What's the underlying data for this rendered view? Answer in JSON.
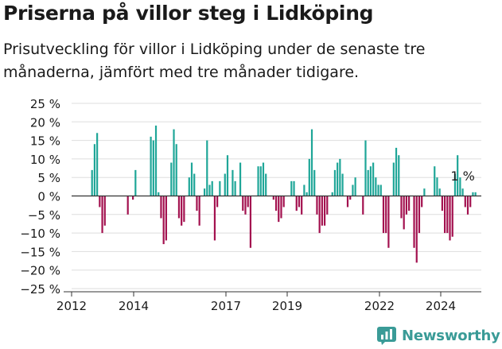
{
  "title": "Priserna på villor steg i Lidköping",
  "subtitle": "Prisutveckling för villor i Lidköping under de senaste tre månaderna, jämfört med tre månader tidigare.",
  "brand": {
    "name": "Newsworthy",
    "color": "#3a9b97"
  },
  "colors": {
    "positive": "#1fa698",
    "negative": "#a3114f",
    "zero_line": "#333333",
    "grid": "#dddddd",
    "text": "#1a1a1a"
  },
  "chart_data": {
    "type": "bar",
    "title": "",
    "xlabel": "",
    "ylabel": "",
    "ylim": [
      -25,
      25
    ],
    "y_ticks": [
      25,
      20,
      15,
      10,
      5,
      0,
      -5,
      -10,
      -15,
      -20,
      -25
    ],
    "y_tick_labels": [
      "25 %",
      "20 %",
      "15 %",
      "10 %",
      "5 %",
      "0 %",
      "−5 %",
      "−10 %",
      "−15 %",
      "−20 %",
      "−25 %"
    ],
    "x_ticks": [
      "2012",
      "2014",
      "2017",
      "2019",
      "2022",
      "2024"
    ],
    "grid": true,
    "start": "2012-09",
    "end": "2025-03",
    "annotation": {
      "text": "1 %",
      "value": 1
    },
    "values": [
      7,
      14,
      17,
      -3,
      -10,
      -8,
      0,
      0,
      0,
      0,
      0,
      0,
      0,
      0,
      -5,
      0,
      -1,
      7,
      0,
      0,
      0,
      0,
      0,
      16,
      15,
      19,
      1,
      -6,
      -13,
      -12,
      0,
      9,
      18,
      14,
      -6,
      -8,
      -7,
      0,
      5,
      9,
      6,
      -4,
      -8,
      0,
      2,
      15,
      3,
      4,
      -12,
      -3,
      4,
      0,
      6,
      11,
      0,
      7,
      4,
      0,
      9,
      -4,
      -5,
      -3,
      -14,
      0,
      0,
      8,
      8,
      9,
      6,
      0,
      0,
      -1,
      -4,
      -7,
      -6,
      -3,
      0,
      0,
      4,
      4,
      -4,
      -3,
      -5,
      3,
      1,
      10,
      18,
      7,
      -5,
      -10,
      -8,
      -8,
      -5,
      0,
      1,
      7,
      9,
      10,
      6,
      0,
      -3,
      -1,
      3,
      5,
      0,
      0,
      -5,
      15,
      7,
      8,
      9,
      5,
      3,
      3,
      -10,
      -10,
      -14,
      0,
      9,
      13,
      11,
      -6,
      -9,
      -5,
      -4,
      0,
      -14,
      -18,
      -10,
      -3,
      2,
      0,
      0,
      0,
      8,
      5,
      2,
      -4,
      -10,
      -10,
      -12,
      -11,
      6,
      11,
      5,
      2,
      -3,
      -5,
      -3,
      1,
      1
    ]
  }
}
